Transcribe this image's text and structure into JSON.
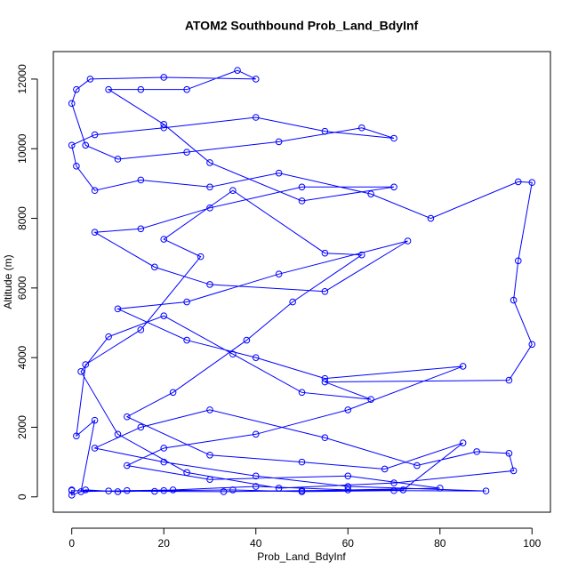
{
  "chart_data": {
    "type": "line",
    "title": "ATOM2 Southbound Prob_Land_BdyInf",
    "xlabel": "Prob_Land_BdyInf",
    "ylabel": "Altitude (m)",
    "x": [
      0,
      0,
      3,
      10,
      20,
      35,
      50,
      70,
      90,
      60,
      40,
      20,
      5,
      15,
      30,
      55,
      75,
      88,
      95,
      96,
      70,
      45,
      25,
      10,
      2,
      8,
      20,
      35,
      50,
      65,
      55,
      95,
      100,
      96,
      97,
      100,
      97,
      78,
      65,
      45,
      30,
      15,
      5,
      1,
      0,
      5,
      20,
      40,
      55,
      70,
      63,
      45,
      25,
      10,
      3,
      0,
      1,
      4,
      20,
      40,
      36,
      25,
      15,
      8,
      20,
      30,
      50,
      70,
      50,
      30,
      15,
      5,
      18,
      30,
      55,
      73,
      45,
      25,
      10,
      25,
      40,
      55,
      85,
      60,
      40,
      20,
      12,
      30,
      60,
      80,
      60,
      40,
      22,
      12,
      2,
      5,
      1,
      3,
      15,
      28,
      20,
      35,
      55,
      63,
      48,
      38,
      22,
      12,
      30,
      50,
      68,
      85,
      72,
      50,
      33,
      18,
      8,
      0
    ],
    "series": [
      {
        "color": "#0000ff",
        "values": [
          200,
          50,
          200,
          150,
          180,
          200,
          150,
          180,
          170,
          300,
          600,
          1000,
          1400,
          2000,
          2500,
          1700,
          900,
          1300,
          1250,
          750,
          400,
          250,
          700,
          1800,
          3600,
          4600,
          5200,
          4100,
          3000,
          2800,
          3300,
          3350,
          4380,
          5650,
          6780,
          9030,
          9050,
          8000,
          8700,
          9300,
          8900,
          9100,
          8800,
          9500,
          10100,
          10400,
          10600,
          10900,
          10500,
          10300,
          10600,
          10200,
          9900,
          9700,
          10100,
          11300,
          11700,
          12000,
          12050,
          12000,
          12250,
          11700,
          11700,
          11700,
          10700,
          9600,
          8500,
          8900,
          8900,
          8300,
          7700,
          7600,
          6600,
          6100,
          5900,
          7350,
          6400,
          5600,
          5400,
          4500,
          4000,
          3400,
          3750,
          2500,
          1800,
          1400,
          900,
          500,
          600,
          250,
          200,
          300,
          200,
          180,
          150,
          2200,
          1750,
          3800,
          4800,
          6900,
          7400,
          8800,
          7000,
          6950,
          5600,
          4500,
          3000,
          2300,
          1200,
          1000,
          800,
          1550,
          200,
          180,
          150,
          160,
          170,
          180
        ]
      }
    ],
    "xlim": [
      -4,
      104
    ],
    "ylim": [
      -440,
      12790
    ],
    "xticks": [
      0,
      20,
      40,
      60,
      80,
      100
    ],
    "yticks": [
      0,
      2000,
      4000,
      6000,
      8000,
      10000,
      12000
    ],
    "marker": "open-circle"
  }
}
